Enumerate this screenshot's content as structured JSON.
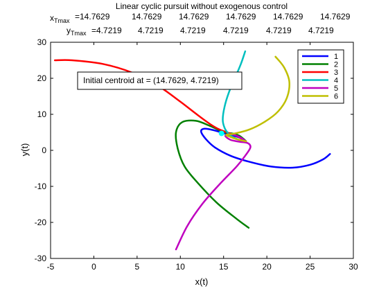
{
  "chart_data": {
    "type": "line",
    "title": "Linear cyclic pursuit without exogenous control",
    "header": {
      "x_label_main": "x",
      "x_label_sub": "Tmax",
      "x_values": [
        "=14.7629",
        "14.7629",
        "14.7629",
        "14.7629",
        "14.7629",
        "14.7629"
      ],
      "y_label_main": "y",
      "y_label_sub": "Tmax",
      "y_values": [
        "=4.7219",
        "4.7219",
        "4.7219",
        "4.7219",
        "4.7219",
        "4.7219"
      ]
    },
    "xlabel": "x(t)",
    "ylabel": "y(t)",
    "xlim": [
      -5,
      30
    ],
    "ylim": [
      -30,
      30
    ],
    "xticks": [
      "-5",
      "0",
      "5",
      "10",
      "15",
      "20",
      "25",
      "30"
    ],
    "yticks": [
      "30",
      "20",
      "10",
      "0",
      "-10",
      "-20",
      "-30"
    ],
    "grid": false,
    "legend_position": "top-right",
    "annotation": "Initial centroid at = (14.7629,  4.7219)",
    "centroid": [
      14.76,
      4.72
    ],
    "series": [
      {
        "name": "1",
        "color": "#0000ff",
        "points": [
          [
            27.3,
            -1
          ],
          [
            26.5,
            -2.5
          ],
          [
            25.0,
            -4
          ],
          [
            23.0,
            -4.8
          ],
          [
            20.5,
            -4.5
          ],
          [
            18.0,
            -3.2
          ],
          [
            15.8,
            -1.5
          ],
          [
            14.0,
            0.8
          ],
          [
            13.0,
            3.0
          ],
          [
            12.4,
            5.2
          ],
          [
            12.8,
            6.0
          ],
          [
            14.0,
            5.5
          ],
          [
            15.5,
            4.4
          ],
          [
            16.8,
            3.6
          ],
          [
            17.6,
            2.5
          ]
        ]
      },
      {
        "name": "2",
        "color": "#008000",
        "points": [
          [
            17.9,
            -21.5
          ],
          [
            16.5,
            -19
          ],
          [
            14.2,
            -14.5
          ],
          [
            12.0,
            -9
          ],
          [
            10.5,
            -4.5
          ],
          [
            9.7,
            0.5
          ],
          [
            9.5,
            5
          ],
          [
            10.2,
            7.8
          ],
          [
            11.8,
            8.2
          ],
          [
            13.4,
            6.8
          ],
          [
            14.5,
            5.6
          ],
          [
            15.3,
            4.9
          ],
          [
            16.2,
            4.6
          ],
          [
            16.8,
            4.1
          ],
          [
            17.3,
            3.2
          ],
          [
            17.6,
            2.5
          ]
        ]
      },
      {
        "name": "3",
        "color": "#ff0000",
        "points": [
          [
            -4.5,
            25
          ],
          [
            -2.5,
            25
          ],
          [
            1.0,
            24
          ],
          [
            4.5,
            21.5
          ],
          [
            7.5,
            17.8
          ],
          [
            10.0,
            13.5
          ],
          [
            12.0,
            9.8
          ],
          [
            13.5,
            7.2
          ],
          [
            14.5,
            5.8
          ],
          [
            15.5,
            4.9
          ],
          [
            16.6,
            3.9
          ],
          [
            17.6,
            2.5
          ]
        ]
      },
      {
        "name": "4",
        "color": "#00bfbf",
        "points": [
          [
            17.5,
            27.5
          ],
          [
            17.0,
            24
          ],
          [
            16.3,
            20
          ],
          [
            15.6,
            16
          ],
          [
            15.1,
            12
          ],
          [
            14.9,
            8.5
          ],
          [
            15.1,
            6.3
          ],
          [
            15.5,
            4.8
          ],
          [
            16.0,
            3.8
          ],
          [
            16.7,
            3.0
          ],
          [
            17.6,
            2.5
          ]
        ]
      },
      {
        "name": "5",
        "color": "#bf00bf",
        "points": [
          [
            9.5,
            -27.5
          ],
          [
            10.8,
            -21
          ],
          [
            12.5,
            -15
          ],
          [
            14.5,
            -9.5
          ],
          [
            16.5,
            -4.5
          ],
          [
            17.5,
            -1.5
          ],
          [
            18.1,
            0.8
          ],
          [
            17.8,
            2.0
          ],
          [
            16.8,
            2.4
          ],
          [
            15.8,
            2.9
          ],
          [
            15.2,
            4.0
          ],
          [
            15.6,
            4.5
          ],
          [
            16.2,
            4.3
          ],
          [
            17.0,
            3.5
          ],
          [
            17.6,
            2.5
          ]
        ]
      },
      {
        "name": "6",
        "color": "#bfbf00",
        "points": [
          [
            21.0,
            26
          ],
          [
            22.0,
            23
          ],
          [
            22.6,
            19
          ],
          [
            22.3,
            14.5
          ],
          [
            21.3,
            10.8
          ],
          [
            19.8,
            8.0
          ],
          [
            18.0,
            5.8
          ],
          [
            16.3,
            4.7
          ],
          [
            15.3,
            4.3
          ],
          [
            15.7,
            3.8
          ],
          [
            16.4,
            3.2
          ],
          [
            17.0,
            2.8
          ],
          [
            17.6,
            2.5
          ]
        ]
      }
    ]
  }
}
